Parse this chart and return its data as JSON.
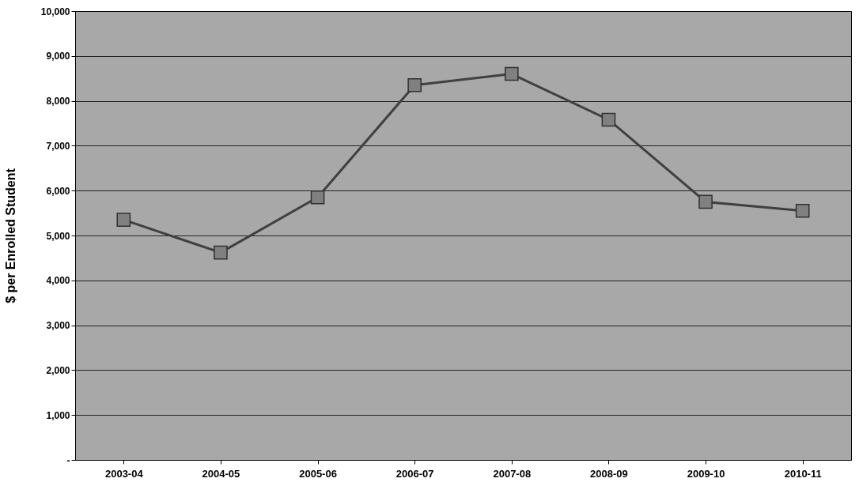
{
  "chart_data": {
    "type": "line",
    "ylabel": "$ per Enrolled Student",
    "categories": [
      "2003-04",
      "2004-05",
      "2005-06",
      "2006-07",
      "2007-08",
      "2008-09",
      "2009-10",
      "2010-11"
    ],
    "series": [
      {
        "color": "#404040",
        "values": [
          5350,
          4620,
          5850,
          8350,
          8600,
          7580,
          5750,
          5550
        ]
      }
    ],
    "ylim": [
      0,
      10000
    ],
    "yticks": [
      {
        "value": 0,
        "label": "-"
      },
      {
        "value": 1000,
        "label": "1,000"
      },
      {
        "value": 2000,
        "label": "2,000"
      },
      {
        "value": 3000,
        "label": "3,000"
      },
      {
        "value": 4000,
        "label": "4,000"
      },
      {
        "value": 5000,
        "label": "5,000"
      },
      {
        "value": 6000,
        "label": "6,000"
      },
      {
        "value": 7000,
        "label": "7,000"
      },
      {
        "value": 8000,
        "label": "8,000"
      },
      {
        "value": 9000,
        "label": "9,000"
      },
      {
        "value": 10000,
        "label": "10,000"
      }
    ],
    "grid": "y",
    "marker": "square",
    "line_style": "solid"
  }
}
